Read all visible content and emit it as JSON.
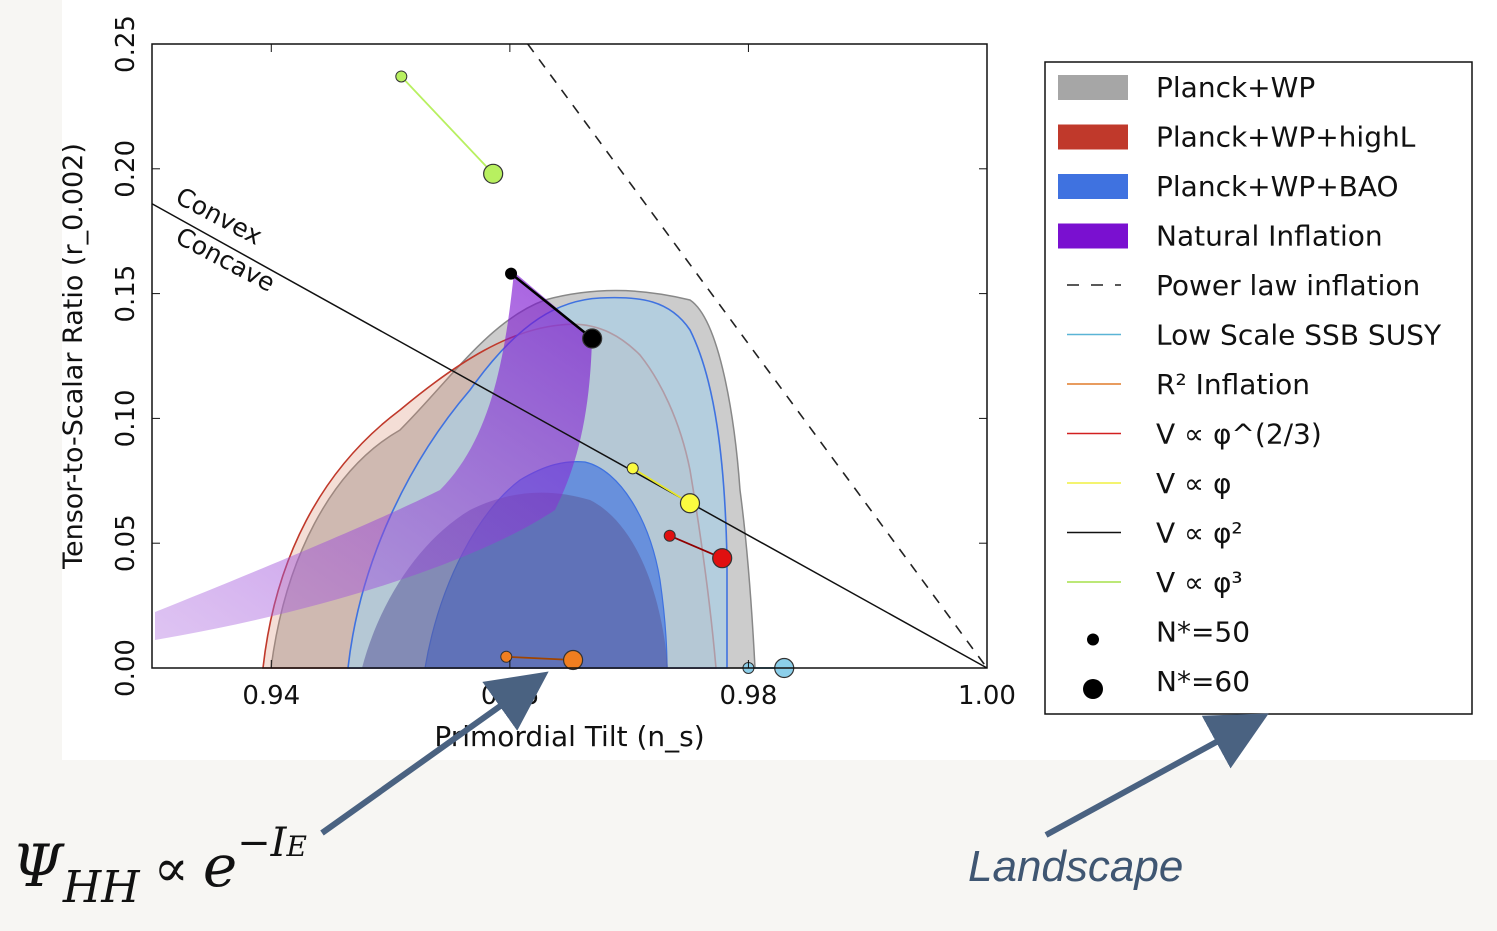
{
  "chart_data": {
    "type": "scatter",
    "xlabel": "Primordial Tilt (n_s)",
    "ylabel": "Tensor-to-Scalar Ratio (r_0.002)",
    "xlim": [
      0.93,
      1.0
    ],
    "ylim": [
      0.0,
      0.25
    ],
    "x_ticks": [
      "0.94",
      "0.96",
      "0.98",
      "1.00"
    ],
    "y_ticks": [
      "0.00",
      "0.05",
      "0.10",
      "0.15",
      "0.20",
      "0.25"
    ],
    "annotations": [
      "Convex",
      "Concave"
    ],
    "grid": false,
    "legend_placement": "outside-right",
    "legend": [
      {
        "label": "Planck+WP",
        "kind": "patch",
        "color": "#a6a6a6"
      },
      {
        "label": "Planck+WP+highL",
        "kind": "patch",
        "color": "#c0392b"
      },
      {
        "label": "Planck+WP+BAO",
        "kind": "patch",
        "color": "#3f72e0"
      },
      {
        "label": "Natural Inflation",
        "kind": "patch",
        "color": "#7a10d0"
      },
      {
        "label": "Power law inflation",
        "kind": "dashed",
        "color": "#222222"
      },
      {
        "label": "Low Scale SSB SUSY",
        "kind": "line",
        "color": "#5ab4d6"
      },
      {
        "label": "R² Inflation",
        "kind": "line",
        "color": "#e07b2a"
      },
      {
        "label": "V ∝ φ^(2/3)",
        "kind": "line",
        "color": "#d22020"
      },
      {
        "label": "V ∝ φ",
        "kind": "line",
        "color": "#f0f040"
      },
      {
        "label": "V ∝ φ²",
        "kind": "line",
        "color": "#111111"
      },
      {
        "label": "V ∝ φ³",
        "kind": "line",
        "color": "#a6e04a"
      },
      {
        "label": "N*=50",
        "kind": "small-dot",
        "color": "#000000"
      },
      {
        "label": "N*=60",
        "kind": "large-dot",
        "color": "#000000"
      }
    ],
    "series": [
      {
        "name": "Power law inflation",
        "style": "dashed",
        "color": "#222222",
        "x": [
          0.9615,
          1.0
        ],
        "y": [
          0.25,
          0.0
        ]
      },
      {
        "name": "V ∝ φ³",
        "color": "#b8f060",
        "edge": "#9acc40",
        "x": [
          0.9509,
          0.9586
        ],
        "y": [
          0.237,
          0.198
        ]
      },
      {
        "name": "V ∝ φ²",
        "color": "#000000",
        "edge": "#000000",
        "x": [
          0.9601,
          0.9669
        ],
        "y": [
          0.158,
          0.132
        ]
      },
      {
        "name": "V ∝ φ",
        "color": "#fbfb40",
        "edge": "#c8c810",
        "x": [
          0.9703,
          0.9751
        ],
        "y": [
          0.08,
          0.066
        ]
      },
      {
        "name": "V ∝ φ^(2/3)",
        "color": "#e01010",
        "edge": "#900000",
        "x": [
          0.9734,
          0.9778
        ],
        "y": [
          0.053,
          0.044
        ]
      },
      {
        "name": "R² Inflation",
        "color": "#f07e20",
        "edge": "#a04400",
        "x": [
          0.9597,
          0.9653
        ],
        "y": [
          0.0045,
          0.0032
        ]
      },
      {
        "name": "Low Scale SSB SUSY",
        "color": "#8ccfea",
        "edge": "#3a8ab0",
        "x": [
          0.98,
          0.983
        ],
        "y": [
          0.0,
          0.0
        ]
      }
    ],
    "reference_line": {
      "x": [
        0.93,
        1.0
      ],
      "y": [
        0.186,
        0.0
      ],
      "color": "#111111"
    },
    "colors": {
      "grey": "#a6a6a6",
      "red": "#c0392b",
      "blue": "#3f72e0",
      "purple": "#7a10d0"
    }
  },
  "captions": {
    "left_psi": "Ψ",
    "left_sub": "HH",
    "left_prop": "∝",
    "left_e": "e",
    "left_exp": "−I",
    "left_exp_sub": "E",
    "right": "Landscape"
  },
  "arrows": {
    "color": "#4a6281"
  }
}
